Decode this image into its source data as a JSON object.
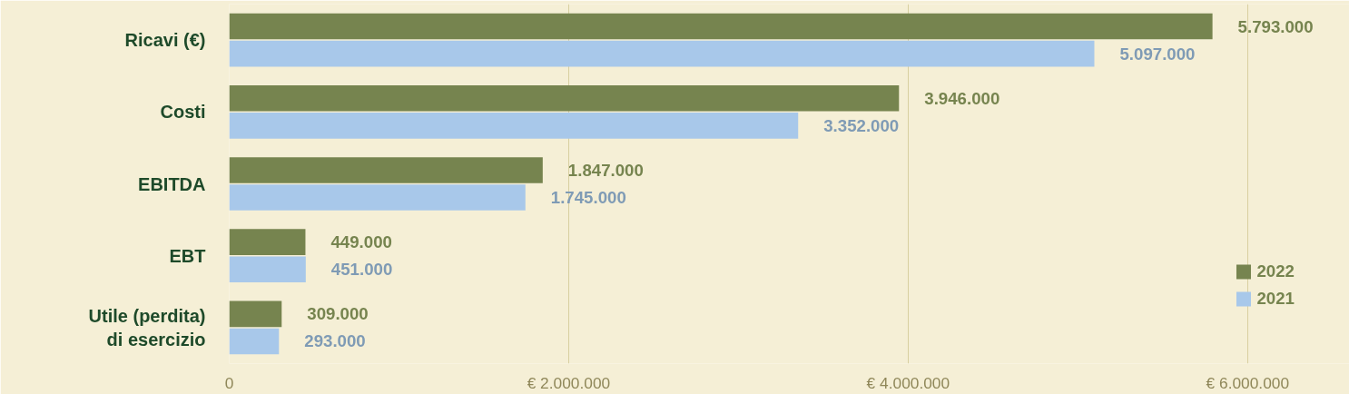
{
  "chart_data": {
    "type": "bar",
    "orientation": "horizontal",
    "categories": [
      "Ricavi (€)",
      "Costi",
      "EBITDA",
      "EBT",
      "Utile (perdita)\ndi esercizio"
    ],
    "series": [
      {
        "name": "2022",
        "color": "#76844f",
        "values": [
          5793000,
          3946000,
          1847000,
          449000,
          309000
        ],
        "value_labels": [
          "5.793.000",
          "3.946.000",
          "1.847.000",
          "449.000",
          "309.000"
        ]
      },
      {
        "name": "2021",
        "color": "#a8c8ea",
        "values": [
          5097000,
          3352000,
          1745000,
          451000,
          293000
        ],
        "value_labels": [
          "5.097.000",
          "3.352.000",
          "1.745.000",
          "451.000",
          "293.000"
        ]
      }
    ],
    "xlim": [
      0,
      6600000
    ],
    "xticks": [
      0,
      {
        "value": 2000000,
        "label": "€ 2.000.000"
      },
      {
        "value": 4000000,
        "label": "€ 4.000.000"
      },
      {
        "value": 6000000,
        "label": "€ 6.000.000"
      }
    ],
    "grid": "x",
    "legend": "bottom right"
  }
}
